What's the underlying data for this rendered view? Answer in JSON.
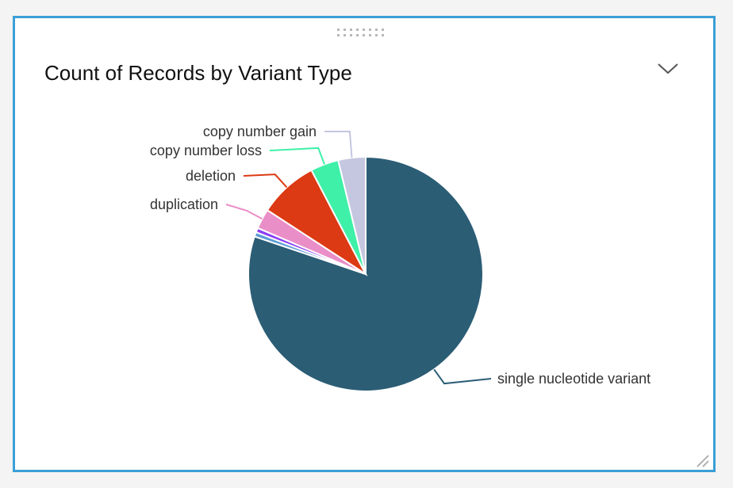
{
  "panel": {
    "title": "Count of Records by Variant Type"
  },
  "icons": {
    "drag": "drag-handle-icon",
    "collapse": "chevron-down-icon",
    "resize": "resize-handle-icon"
  },
  "chart_data": {
    "type": "pie",
    "title": "Count of Records by Variant Type",
    "categories": [
      "single nucleotide variant",
      "other (light blue)",
      "other (purple)",
      "duplication",
      "deletion",
      "copy number loss",
      "copy number gain"
    ],
    "values": [
      78.6,
      0.6,
      0.6,
      2.7,
      8.0,
      3.8,
      3.7
    ],
    "colors": [
      "#2b5d75",
      "#5b9bd5",
      "#8b3df5",
      "#ea8ec8",
      "#dc3a14",
      "#3ef0a8",
      "#c5c6e0"
    ],
    "labels_shown": [
      "single nucleotide variant",
      "",
      "",
      "duplication",
      "deletion",
      "copy number loss",
      "copy number gain"
    ]
  }
}
